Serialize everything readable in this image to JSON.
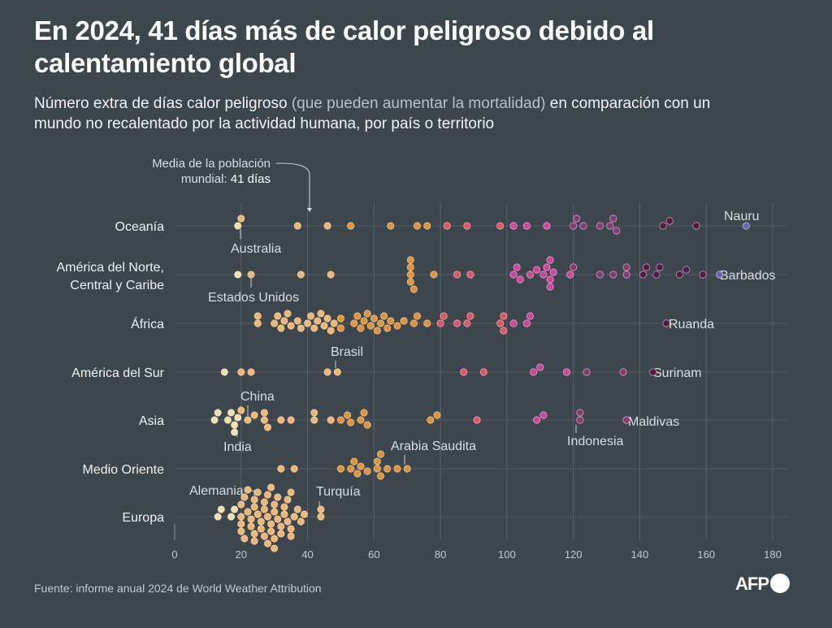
{
  "title": "En 2024, 41 días más de calor peligroso debido al calentamiento global",
  "subtitle": {
    "part1": "Número extra de días calor peligroso ",
    "part2": "(que pueden aumentar la mortalidad)",
    "part3": " en comparación con un mundo no recalentado por la actividad humana, por país o territorio"
  },
  "source": "Fuente: informe anual 2024 de World Weather Attribution",
  "logo": "AFP",
  "mean_annotation": {
    "line1": "Media de la población",
    "line2_prefix": "mundial: ",
    "line2_value": "41 días",
    "value": 41
  },
  "colors": {
    "background": "#3c464d",
    "scale": [
      "#f3e0a4",
      "#f5b669",
      "#e8922f",
      "#ec5060",
      "#d93f9e",
      "#8d3873",
      "#5c1447",
      "#6d66b8"
    ]
  },
  "chart_data": {
    "type": "beeswarm",
    "xlim": [
      0,
      180
    ],
    "xticks": [
      "0",
      "20",
      "40",
      "60",
      "80",
      "100",
      "120",
      "140",
      "160",
      "180"
    ],
    "grid": true,
    "categories": [
      {
        "name": "Oceanía",
        "values": [
          19,
          20,
          37,
          46,
          53,
          65,
          73,
          76,
          82,
          88,
          98,
          102,
          106,
          112,
          120,
          121,
          123,
          128,
          131,
          132,
          133,
          147,
          149,
          157,
          172
        ]
      },
      {
        "name": "América del Norte,",
        "name2": "Central y Caribe",
        "values": [
          19,
          23,
          38,
          47,
          71,
          71,
          71,
          71,
          72,
          78,
          85,
          89,
          102,
          103,
          104,
          107,
          109,
          111,
          112,
          113,
          113,
          113,
          114,
          119,
          120,
          128,
          132,
          136,
          136,
          141,
          142,
          145,
          146,
          152,
          154,
          159,
          164
        ]
      },
      {
        "name": "África",
        "values": [
          25,
          25,
          30,
          31,
          32,
          33,
          34,
          35,
          37,
          38,
          40,
          41,
          42,
          43,
          44,
          45,
          46,
          47,
          48,
          50,
          50,
          54,
          55,
          56,
          57,
          58,
          59,
          60,
          61,
          62,
          63,
          64,
          65,
          67,
          69,
          72,
          73,
          76,
          80,
          81,
          85,
          88,
          89,
          98,
          99,
          99,
          102,
          106,
          107,
          148
        ]
      },
      {
        "name": "América del Sur",
        "values": [
          15,
          20,
          23,
          46,
          49,
          87,
          93,
          108,
          110,
          118,
          124,
          135,
          144
        ]
      },
      {
        "name": "Asia",
        "values": [
          12,
          13,
          16,
          17,
          18,
          18,
          19,
          20,
          22,
          24,
          27,
          27,
          28,
          32,
          35,
          42,
          42,
          47,
          50,
          52,
          53,
          56,
          57,
          58,
          77,
          79,
          91,
          109,
          111,
          122,
          122,
          136
        ]
      },
      {
        "name": "Medio Oriente",
        "values": [
          32,
          36,
          50,
          53,
          54,
          55,
          56,
          58,
          61,
          61,
          62,
          62,
          64,
          67,
          70
        ]
      },
      {
        "name": "Europa",
        "values": [
          13,
          14,
          17,
          18,
          20,
          20,
          20,
          20,
          21,
          21,
          22,
          22,
          23,
          23,
          24,
          24,
          24,
          24,
          25,
          25,
          26,
          26,
          27,
          27,
          27,
          28,
          28,
          28,
          29,
          29,
          29,
          30,
          30,
          30,
          30,
          31,
          31,
          32,
          32,
          33,
          33,
          34,
          34,
          35,
          35,
          35,
          36,
          37,
          38,
          39,
          44,
          44
        ]
      }
    ],
    "annotations": [
      {
        "label": "Nauru",
        "value": 172
      },
      {
        "label": "Australia",
        "value": 19
      },
      {
        "label": "Barbados",
        "value": 164
      },
      {
        "label": "Estados Unidos",
        "value": 23
      },
      {
        "label": "Ruanda",
        "value": 148
      },
      {
        "label": "Brasil",
        "value": 49
      },
      {
        "label": "Surinam",
        "value": 144
      },
      {
        "label": "China",
        "value": 24
      },
      {
        "label": "Maldivas",
        "value": 136
      },
      {
        "label": "India",
        "value": 18
      },
      {
        "label": "Indonesia",
        "value": 122
      },
      {
        "label": "Arabia Saudita",
        "value": 70
      },
      {
        "label": "Alemania",
        "value": 24
      },
      {
        "label": "Turquía",
        "value": 44
      }
    ]
  }
}
